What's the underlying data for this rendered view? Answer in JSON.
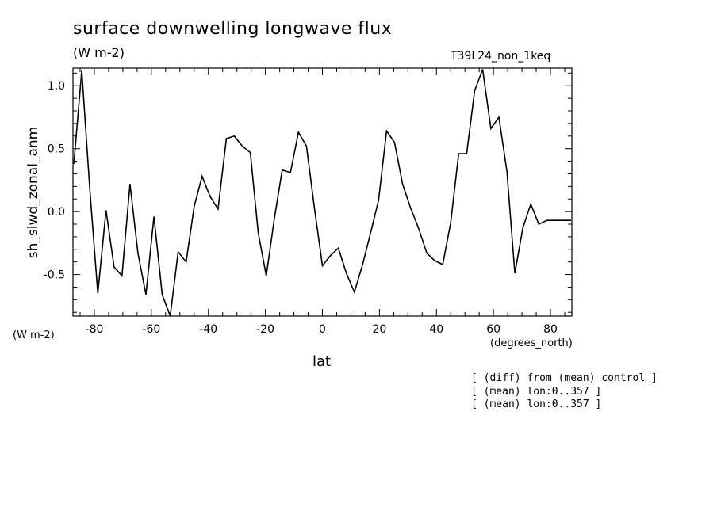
{
  "chart_data": {
    "type": "line",
    "title": "surface downwelling longwave flux",
    "units": "(W m-2)",
    "run_name": "T39L24_non_1keq",
    "ylabel": "sh_slwd_zonal_anm",
    "y_units": "(W m-2)",
    "xlabel": "lat",
    "x_units": "(degrees_north)",
    "xlim": [
      -87.5,
      87.5
    ],
    "ylim": [
      -0.83,
      1.14
    ],
    "x_ticks": [
      -80,
      -60,
      -40,
      -20,
      0,
      20,
      40,
      60,
      80
    ],
    "x_tick_labels": [
      "-80",
      "-60",
      "-40",
      "-20",
      "0",
      "20",
      "40",
      "60",
      "80"
    ],
    "y_ticks": [
      -0.5,
      0.0,
      0.5,
      1.0
    ],
    "y_tick_labels": [
      "-0.5",
      "0.0",
      "0.5",
      "1.0"
    ],
    "grid": false,
    "series": [
      {
        "x": [
          -87.2,
          -84.4,
          -81.6,
          -78.8,
          -75.9,
          -73.1,
          -70.3,
          -67.5,
          -64.7,
          -61.9,
          -59.1,
          -56.2,
          -53.4,
          -50.6,
          -47.8,
          -45.0,
          -42.2,
          -39.4,
          -36.6,
          -33.7,
          -30.9,
          -28.1,
          -25.3,
          -22.5,
          -19.7,
          -16.9,
          -14.1,
          -11.2,
          -8.4,
          -5.6,
          -2.8,
          0.0,
          2.8,
          5.6,
          8.4,
          11.2,
          14.1,
          16.9,
          19.7,
          22.5,
          25.3,
          28.1,
          30.9,
          33.7,
          36.6,
          39.4,
          42.2,
          45.0,
          47.8,
          50.6,
          53.4,
          56.2,
          59.1,
          61.9,
          64.7,
          67.5,
          70.3,
          73.1,
          75.9,
          78.8,
          81.6,
          84.4,
          87.2
        ],
        "y": [
          0.38,
          1.12,
          0.18,
          -0.65,
          0.01,
          -0.44,
          -0.51,
          0.22,
          -0.33,
          -0.66,
          -0.04,
          -0.66,
          -0.83,
          -0.32,
          -0.4,
          0.04,
          0.28,
          0.12,
          0.02,
          0.58,
          0.6,
          0.52,
          0.47,
          -0.17,
          -0.51,
          -0.06,
          0.33,
          0.31,
          0.63,
          0.52,
          0.03,
          -0.43,
          -0.35,
          -0.29,
          -0.49,
          -0.64,
          -0.42,
          -0.17,
          0.09,
          0.64,
          0.55,
          0.22,
          0.03,
          -0.13,
          -0.33,
          -0.39,
          -0.42,
          -0.09,
          0.46,
          0.46,
          0.96,
          1.13,
          0.66,
          0.75,
          0.32,
          -0.49,
          -0.13,
          0.06,
          -0.1,
          -0.07,
          -0.07,
          -0.07,
          -0.07
        ]
      }
    ],
    "annotations": [
      "[ (diff) from (mean) control ]",
      "[ (mean) lon:0..357 ]",
      "[ (mean) lon:0..357 ]"
    ]
  }
}
